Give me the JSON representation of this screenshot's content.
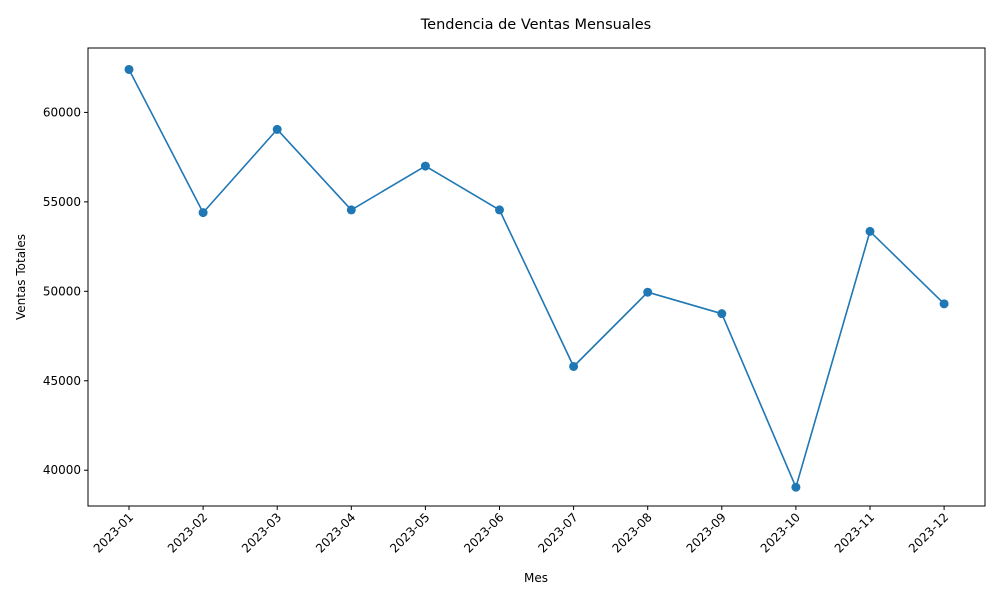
{
  "chart_data": {
    "type": "line",
    "title": "Tendencia de Ventas Mensuales",
    "xlabel": "Mes",
    "ylabel": "Ventas Totales",
    "categories": [
      "2023-01",
      "2023-02",
      "2023-03",
      "2023-04",
      "2023-05",
      "2023-06",
      "2023-07",
      "2023-08",
      "2023-09",
      "2023-10",
      "2023-11",
      "2023-12"
    ],
    "series": [
      {
        "values": [
          62400,
          54400,
          59050,
          54550,
          57000,
          54550,
          45800,
          49950,
          48750,
          39050,
          53350,
          49300
        ]
      }
    ],
    "yticks": [
      40000,
      45000,
      50000,
      55000,
      60000
    ],
    "ylim": [
      38000,
      63600
    ],
    "grid": false,
    "marker": "circle",
    "line_color": "#1f77b4"
  }
}
